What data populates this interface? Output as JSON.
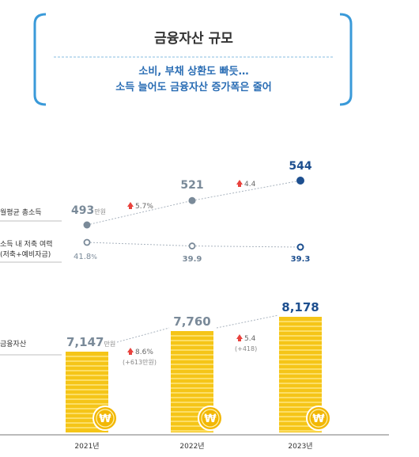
{
  "header": {
    "title": "금융자산 규모",
    "subtitle_line1": "소비, 부채 상환도 빠듯…",
    "subtitle_line2": "소득 늘어도 금융자산 증가폭은 줄어"
  },
  "labels": {
    "income": "월평균 총소득",
    "savings_line1": "소득 내 저축 여력",
    "savings_line2": "(저축+예비자금)",
    "assets": "금융자산"
  },
  "colors": {
    "accent": "#3a9ad9",
    "title": "#333333",
    "subtitle": "#2a6db4",
    "navy": "#1d4f8f",
    "gray": "#7a8a99",
    "up_arrow": "#e8423d",
    "coin": "#f5c518",
    "coin_line": "#ffe680"
  },
  "chart_data": [
    {
      "type": "line",
      "name": "월평균 총소득",
      "x": [
        "2021년",
        "2022년",
        "2023년"
      ],
      "values": [
        493,
        521,
        544
      ],
      "value_labels": [
        "493",
        "521",
        "544"
      ],
      "unit_label": "만원",
      "changes": [
        "5.7%",
        "4.4"
      ]
    },
    {
      "type": "line",
      "name": "소득 내 저축 여력 (저축+예비자금)",
      "x": [
        "2021년",
        "2022년",
        "2023년"
      ],
      "values": [
        41.8,
        39.9,
        39.3
      ],
      "value_labels": [
        "41.8",
        "39.9",
        "39.3"
      ],
      "unit_label": "%"
    },
    {
      "type": "bar",
      "name": "금융자산",
      "categories": [
        "2021년",
        "2022년",
        "2023년"
      ],
      "values": [
        7147,
        7760,
        8178
      ],
      "value_labels": [
        "7,147",
        "7,760",
        "8,178"
      ],
      "unit_label": "만원",
      "changes": [
        {
          "pct": "8.6%",
          "abs": "(+613만원)"
        },
        {
          "pct": "5.4",
          "abs": "(+418)"
        }
      ],
      "coin_symbol": "₩"
    }
  ]
}
